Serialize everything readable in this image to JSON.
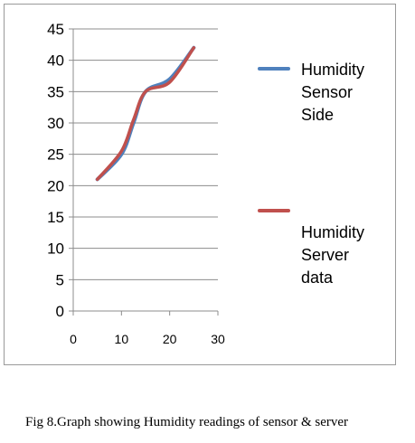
{
  "chart_data": {
    "type": "line",
    "xlim": [
      0,
      30
    ],
    "ylim": [
      0,
      45
    ],
    "xticks": [
      0,
      10,
      20,
      30
    ],
    "yticks": [
      0,
      5,
      10,
      15,
      20,
      25,
      30,
      35,
      40,
      45
    ],
    "grid": "horizontal",
    "legend_position": "right",
    "series": [
      {
        "name": "Humidity Sensor Side",
        "color": "#4f81bd",
        "points": [
          [
            5,
            21
          ],
          [
            10,
            25
          ],
          [
            12.5,
            30
          ],
          [
            15,
            35
          ],
          [
            20,
            37
          ],
          [
            25,
            42
          ]
        ]
      },
      {
        "name": "Humidity Server data",
        "color": "#c0504d",
        "points": [
          [
            5,
            21
          ],
          [
            10,
            25.5
          ],
          [
            12.5,
            30.5
          ],
          [
            15,
            35
          ],
          [
            20,
            36.5
          ],
          [
            25,
            42
          ]
        ]
      }
    ]
  },
  "legend": {
    "sensor_lines": [
      "Humidity",
      "Sensor",
      "Side"
    ],
    "server_lines": [
      "Humidity",
      "Server",
      "data"
    ]
  },
  "caption": "Fig 8.Graph showing Humidity readings of sensor & server"
}
